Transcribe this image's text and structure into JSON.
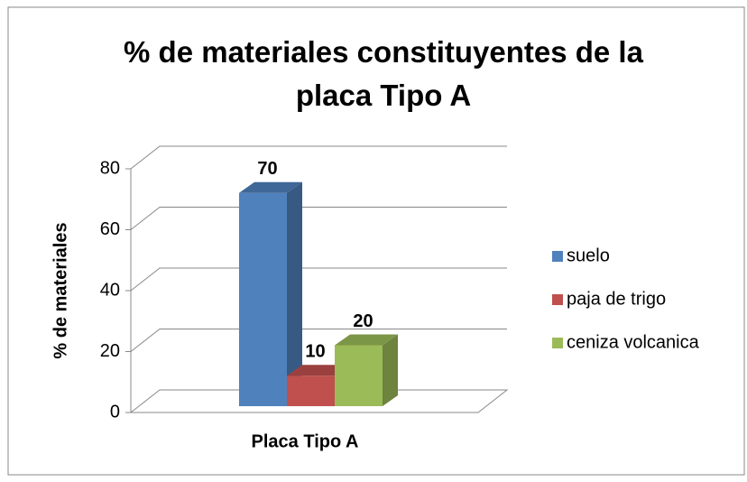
{
  "chart_data": {
    "type": "bar3d",
    "title": "% de materiales constituyentes de la placa Tipo A",
    "y_label": "% de materiales",
    "categories": [
      "Placa Tipo A"
    ],
    "series": [
      {
        "name": "suelo",
        "color": "#4f81bd",
        "values": [
          70
        ]
      },
      {
        "name": "paja de trigo",
        "color": "#c0504d",
        "values": [
          10
        ]
      },
      {
        "name": "ceniza volcanica",
        "color": "#9bbb59",
        "values": [
          20
        ]
      }
    ],
    "ylim": [
      0,
      80
    ],
    "yticks": [
      0,
      20,
      40,
      60,
      80
    ],
    "grid": true,
    "legend": "right"
  }
}
